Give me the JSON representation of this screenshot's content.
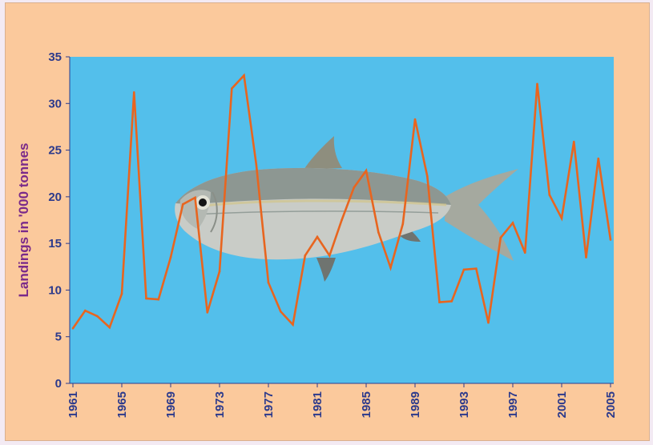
{
  "colors": {
    "background": "#fbc99c",
    "plot_area": "#53bfeb",
    "line": "#e8651f",
    "tick_text": "#2c3a8c",
    "axis_title": "#7a2a8a"
  },
  "chart_data": {
    "type": "line",
    "title": "",
    "xlabel": "",
    "ylabel": "Landings in '000 tonnes",
    "ylim": [
      0,
      35
    ],
    "yticks": [
      0,
      5,
      10,
      15,
      20,
      25,
      30,
      35
    ],
    "xticks": [
      1961,
      1965,
      1969,
      1973,
      1977,
      1981,
      1985,
      1989,
      1993,
      1997,
      2001,
      2005
    ],
    "grid": false,
    "legend": "none",
    "decoration": "fish-image",
    "series": [
      {
        "x": [
          1961,
          1962,
          1963,
          1964,
          1965,
          1966,
          1967,
          1968,
          1969,
          1970,
          1971,
          1972,
          1973,
          1974,
          1975,
          1976,
          1977,
          1978,
          1979,
          1980,
          1981,
          1982,
          1983,
          1984,
          1985,
          1986,
          1987,
          1988,
          1989,
          1990,
          1991,
          1992,
          1993,
          1994,
          1995,
          1996,
          1997,
          1998,
          1999,
          2000,
          2001,
          2002,
          2003,
          2004,
          2005
        ],
        "values": [
          5.9,
          7.8,
          7.2,
          6.0,
          9.6,
          31.2,
          9.1,
          9.0,
          13.5,
          19.2,
          19.9,
          7.6,
          12.0,
          31.6,
          33.0,
          23.5,
          10.8,
          7.7,
          6.3,
          13.7,
          15.7,
          13.7,
          17.5,
          21.0,
          22.8,
          16.2,
          12.4,
          17.1,
          28.3,
          22.2,
          8.7,
          8.8,
          12.2,
          12.3,
          6.5,
          15.6,
          17.2,
          14.0,
          32.1,
          20.2,
          17.7,
          25.9,
          13.5,
          24.1,
          15.4
        ]
      }
    ]
  }
}
